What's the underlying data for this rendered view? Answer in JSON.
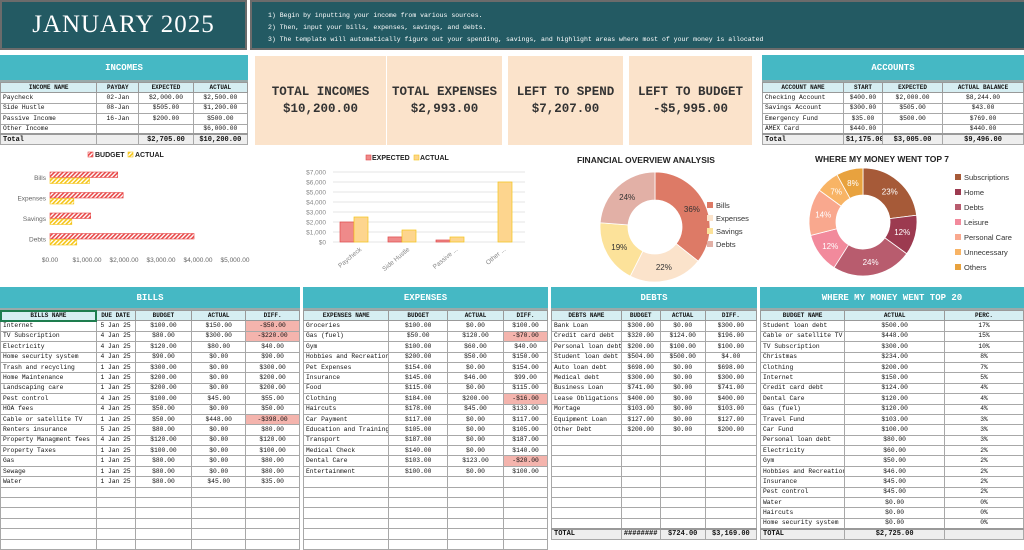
{
  "header": {
    "title": "JANUARY 2025",
    "instructions": [
      "1)  Begin by inputting your income from various sources.",
      "2)  Then, input your bills, expenses, savings, and debts.",
      "3)  The template will automatically figure out your spending, savings, and highlight areas where most of your money is allocated"
    ]
  },
  "summary": [
    {
      "label": "TOTAL INCOMES",
      "value": "$10,200.00"
    },
    {
      "label": "TOTAL EXPENSES",
      "value": "$2,993.00"
    },
    {
      "label": "LEFT TO SPEND",
      "value": "$7,207.00"
    },
    {
      "label": "LEFT TO BUDGET",
      "value": "-$5,995.00"
    }
  ],
  "tables": {
    "incomes": {
      "title": "INCOMES",
      "columns": [
        "INCOME NAME",
        "PAYDAY",
        "EXPECTED",
        "ACTUAL"
      ],
      "rows": [
        [
          "Paycheck",
          "02-Jan",
          "$2,000.00",
          "$2,500.00"
        ],
        [
          "Side Hustle",
          "08-Jan",
          "$505.00",
          "$1,200.00"
        ],
        [
          "Passive Income",
          "16-Jan",
          "$200.00",
          "$500.00"
        ],
        [
          "Other Income",
          "",
          "",
          "$6,000.00"
        ]
      ],
      "total": [
        "Total",
        "",
        "$2,705.00",
        "$10,200.00"
      ]
    },
    "accounts": {
      "title": "ACCOUNTS",
      "columns": [
        "ACCOUNT NAME",
        "START",
        "EXPECTED",
        "ACTUAL BALANCE"
      ],
      "rows": [
        [
          "Checking Account",
          "$400.00",
          "$2,000.00",
          "$8,244.00"
        ],
        [
          "Savings Account",
          "$300.00",
          "$505.00",
          "$43.00"
        ],
        [
          "Emergency Fund",
          "$35.00",
          "$500.00",
          "$769.00"
        ],
        [
          "AMEX Card",
          "$440.00",
          "",
          "$440.00"
        ]
      ],
      "total": [
        "Total",
        "$1,175.00",
        "$3,005.00",
        "$9,496.00"
      ]
    },
    "bills": {
      "title": "BILLS",
      "columns": [
        "BILLS NAME",
        "DUE DATE",
        "BUDGET",
        "ACTUAL",
        "DIFF."
      ],
      "rows": [
        [
          "Internet",
          "5 Jan 25",
          "$100.00",
          "$150.00",
          "-$50.00"
        ],
        [
          "TV Subscription",
          "4 Jan 25",
          "$80.00",
          "$300.00",
          "-$220.00"
        ],
        [
          "Electricity",
          "4 Jan 25",
          "$120.00",
          "$80.00",
          "$40.00"
        ],
        [
          "Home security system",
          "4 Jan 25",
          "$90.00",
          "$0.00",
          "$90.00"
        ],
        [
          "Trash and recycling",
          "1 Jan 25",
          "$300.00",
          "$0.00",
          "$300.00"
        ],
        [
          "Home Maintenance",
          "1 Jan 25",
          "$200.00",
          "$0.00",
          "$200.00"
        ],
        [
          "Landscaping care",
          "1 Jan 25",
          "$200.00",
          "$0.00",
          "$200.00"
        ],
        [
          "Pest control",
          "4 Jan 25",
          "$100.00",
          "$45.00",
          "$55.00"
        ],
        [
          "HOA fees",
          "4 Jan 25",
          "$50.00",
          "$0.00",
          "$50.00"
        ],
        [
          "Cable or satellite TV",
          "1 Jan 25",
          "$50.00",
          "$448.00",
          "-$398.00"
        ],
        [
          "Renters insurance",
          "5 Jan 25",
          "$80.00",
          "$0.00",
          "$80.00"
        ],
        [
          "Property Managment fees",
          "4 Jan 25",
          "$120.00",
          "$0.00",
          "$120.00"
        ],
        [
          "Property Taxes",
          "1 Jan 25",
          "$100.00",
          "$0.00",
          "$100.00"
        ],
        [
          "Gas",
          "1 Jan 25",
          "$80.00",
          "$0.00",
          "$80.00"
        ],
        [
          "Sewage",
          "1 Jan 25",
          "$80.00",
          "$0.00",
          "$80.00"
        ],
        [
          "Water",
          "1 Jan 25",
          "$80.00",
          "$45.00",
          "$35.00"
        ]
      ]
    },
    "expenses": {
      "title": "EXPENSES",
      "columns": [
        "EXPENSES NAME",
        "BUDGET",
        "ACTUAL",
        "DIFF."
      ],
      "rows": [
        [
          "Groceries",
          "$100.00",
          "$0.00",
          "$100.00"
        ],
        [
          "Gas (fuel)",
          "$50.00",
          "$120.00",
          "-$70.00"
        ],
        [
          "Gym",
          "$100.00",
          "$60.00",
          "$40.00"
        ],
        [
          "Hobbies and Recreation",
          "$200.00",
          "$50.00",
          "$150.00"
        ],
        [
          "Pet Expenses",
          "$154.00",
          "$0.00",
          "$154.00"
        ],
        [
          "Insurance",
          "$145.00",
          "$46.00",
          "$99.00"
        ],
        [
          "Food",
          "$115.00",
          "$0.00",
          "$115.00"
        ],
        [
          "Clothing",
          "$184.00",
          "$200.00",
          "-$16.00"
        ],
        [
          "Haircuts",
          "$178.00",
          "$45.00",
          "$133.00"
        ],
        [
          "Car Payment",
          "$117.00",
          "$0.00",
          "$117.00"
        ],
        [
          "Education and Training",
          "$105.00",
          "$0.00",
          "$105.00"
        ],
        [
          "Transport",
          "$187.00",
          "$0.00",
          "$187.00"
        ],
        [
          "Medical Check",
          "$140.00",
          "$0.00",
          "$140.00"
        ],
        [
          "Dental Care",
          "$103.00",
          "$123.00",
          "-$20.00"
        ],
        [
          "Entertainment",
          "$100.00",
          "$0.00",
          "$100.00"
        ]
      ]
    },
    "debts": {
      "title": "DEBTS",
      "columns": [
        "DEBTS NAME",
        "BUDGET",
        "ACTUAL",
        "DIFF."
      ],
      "rows": [
        [
          "Bank Loan",
          "$300.00",
          "$0.00",
          "$300.00"
        ],
        [
          "Credit card debt",
          "$320.00",
          "$124.00",
          "$196.00"
        ],
        [
          "Personal loan debt",
          "$200.00",
          "$100.00",
          "$100.00"
        ],
        [
          "Student loan debt",
          "$504.00",
          "$500.00",
          "$4.00"
        ],
        [
          "Auto loan debt",
          "$698.00",
          "$0.00",
          "$698.00"
        ],
        [
          "Medical debt",
          "$300.00",
          "$0.00",
          "$300.00"
        ],
        [
          "Business Loan",
          "$741.00",
          "$0.00",
          "$741.00"
        ],
        [
          "Lease Obligations",
          "$400.00",
          "$0.00",
          "$400.00"
        ],
        [
          "Mortage",
          "$103.00",
          "$0.00",
          "$103.00"
        ],
        [
          "Equipment Loan",
          "$127.00",
          "$0.00",
          "$127.00"
        ],
        [
          "Other Debt",
          "$200.00",
          "$0.00",
          "$200.00"
        ]
      ],
      "total": [
        "TOTAL",
        "########",
        "$724.00",
        "$3,169.00"
      ]
    },
    "top20": {
      "title": "WHERE MY MONEY WENT TOP 20",
      "columns": [
        "BUDGET NAME",
        "ACTUAL",
        "PERC."
      ],
      "rows": [
        [
          "Student loan debt",
          "$500.00",
          "17%"
        ],
        [
          "Cable or satellite TV",
          "$448.00",
          "15%"
        ],
        [
          "TV Subscription",
          "$300.00",
          "10%"
        ],
        [
          "Christmas",
          "$234.00",
          "8%"
        ],
        [
          "Clothing",
          "$200.00",
          "7%"
        ],
        [
          "Internet",
          "$150.00",
          "5%"
        ],
        [
          "Credit card debt",
          "$124.00",
          "4%"
        ],
        [
          "Dental Care",
          "$120.00",
          "4%"
        ],
        [
          "Gas (fuel)",
          "$120.00",
          "4%"
        ],
        [
          "Travel Fund",
          "$103.00",
          "3%"
        ],
        [
          "Car Fund",
          "$100.00",
          "3%"
        ],
        [
          "Personal loan debt",
          "$80.00",
          "3%"
        ],
        [
          "Electricity",
          "$60.00",
          "2%"
        ],
        [
          "Gym",
          "$50.00",
          "2%"
        ],
        [
          "Hobbies and Recreation",
          "$46.00",
          "2%"
        ],
        [
          "Insurance",
          "$45.00",
          "2%"
        ],
        [
          "Pest control",
          "$45.00",
          "2%"
        ],
        [
          "Water",
          "$0.00",
          "0%"
        ],
        [
          "Haircuts",
          "$0.00",
          "0%"
        ],
        [
          "Home security system",
          "$0.00",
          "0%"
        ]
      ],
      "total": [
        "TOTAL",
        "$2,725.00",
        ""
      ]
    }
  },
  "colors": {
    "header_dark": "#235a63",
    "panel_teal": "#45b8c4",
    "summary_bg": "#fbe3cb",
    "negative": "#f4b4ad"
  },
  "chart_data": [
    {
      "type": "bar",
      "orientation": "horizontal",
      "categories": [
        "Bills",
        "Expenses",
        "Savings",
        "Debts"
      ],
      "series": [
        {
          "name": "BUDGET",
          "values": [
            1830,
            1978,
            1100,
            3893
          ],
          "color": "#e84a4a"
        },
        {
          "name": "ACTUAL",
          "values": [
            1068,
            644,
            590,
            724
          ],
          "color": "#f5c518"
        }
      ],
      "xticks": [
        "$0.00",
        "$1,000.00",
        "$2,000.00",
        "$3,000.00",
        "$4,000.00",
        "$5,000.00"
      ],
      "xlim": [
        0,
        5000
      ],
      "legend": "top"
    },
    {
      "type": "bar",
      "categories": [
        "Paycheck",
        "Side Hustle",
        "Passive ...",
        "Other ..."
      ],
      "series": [
        {
          "name": "EXPECTED",
          "values": [
            2000,
            505,
            200,
            0
          ],
          "color": "#ef8a8a"
        },
        {
          "name": "ACTUAL",
          "values": [
            2500,
            1200,
            500,
            6000
          ],
          "color": "#fdd58e"
        }
      ],
      "yticks": [
        "$0",
        "$1,000",
        "$2,000",
        "$3,000",
        "$4,000",
        "$5,000",
        "$6,000",
        "$7,000"
      ],
      "ylim": [
        0,
        7000
      ],
      "grid": true,
      "legend": "top"
    },
    {
      "type": "pie",
      "title": "FINANCIAL OVERVIEW ANALYSIS",
      "labels": [
        "Bills",
        "Expenses",
        "Savings",
        "Debts"
      ],
      "values": [
        36,
        22,
        19,
        24
      ],
      "value_labels": [
        "36%",
        "22%",
        "19%",
        "24%"
      ],
      "colors": [
        "#dd7a66",
        "#fbe3cb",
        "#fce29a",
        "#e2b0a6"
      ],
      "donut": true,
      "legend": "right"
    },
    {
      "type": "pie",
      "title": "WHERE MY MONEY WENT TOP 7",
      "labels": [
        "Subscriptions",
        "Home",
        "Debts",
        "Leisure",
        "Personal Care",
        "Unnecessary",
        "Others"
      ],
      "values": [
        23,
        12,
        24,
        12,
        14,
        7,
        8
      ],
      "value_labels": [
        "23%",
        "12%",
        "24%",
        "12%",
        "14%",
        "7%",
        "8%"
      ],
      "colors": [
        "#a65a38",
        "#9c3a50",
        "#b85c6e",
        "#f28a9c",
        "#f9a88e",
        "#f8b465",
        "#e8a23e"
      ],
      "donut": true,
      "legend": "right"
    }
  ]
}
